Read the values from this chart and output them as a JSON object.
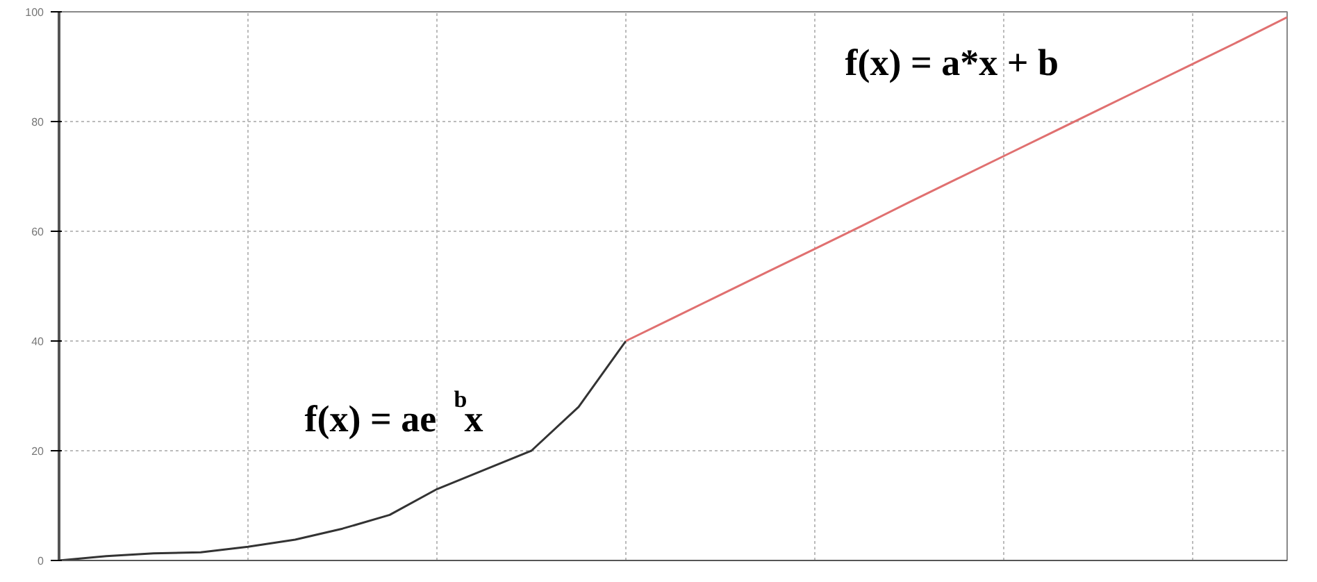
{
  "chart_data": {
    "type": "line",
    "categories": [
      null,
      null,
      null,
      null,
      null,
      null,
      null,
      null,
      null,
      null,
      null,
      null,
      null,
      null,
      null,
      null,
      null,
      null,
      null,
      null,
      null,
      null,
      null,
      null,
      null,
      null,
      null
    ],
    "series": [
      {
        "color": "#333333",
        "values": [
          0,
          0.8,
          1.3,
          1.5,
          2.5,
          3.8,
          5.8,
          8.3,
          13,
          16.5,
          20,
          28,
          40,
          null,
          null,
          null,
          null,
          null,
          null,
          null,
          null,
          null,
          null,
          null,
          null,
          null,
          null
        ]
      },
      {
        "color": "#e07070",
        "values": [
          null,
          null,
          null,
          null,
          null,
          null,
          null,
          null,
          null,
          null,
          null,
          null,
          40,
          44.2,
          48.4,
          52.6,
          56.8,
          61,
          65.3,
          69.5,
          73.7,
          77.9,
          82.1,
          86.3,
          90.5,
          94.7,
          99
        ]
      }
    ],
    "ylim": [
      0,
      100
    ],
    "yticks": [
      0,
      20,
      40,
      60,
      80,
      100
    ],
    "grid": true,
    "tick_labels": "y",
    "line_style": "solid",
    "annotations": [
      "f(x) = ae$^{b}$x",
      "f(x) = a*x + b"
    ]
  }
}
